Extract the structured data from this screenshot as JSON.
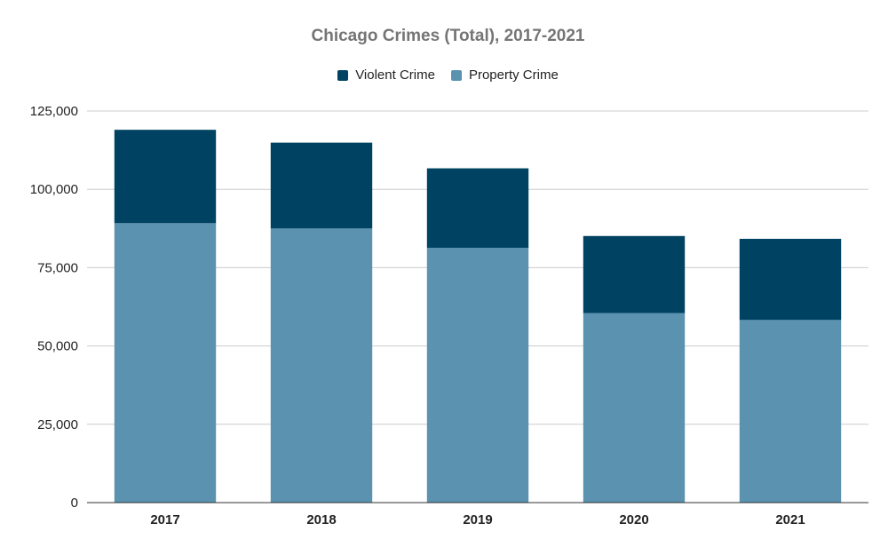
{
  "chart_data": {
    "type": "bar",
    "stacked": true,
    "title": "Chicago Crimes (Total), 2017-2021",
    "xlabel": "",
    "ylabel": "",
    "categories": [
      "2017",
      "2018",
      "2019",
      "2020",
      "2021"
    ],
    "series": [
      {
        "name": "Property Crime",
        "color": "#5a92b0",
        "values": [
          89200,
          87500,
          81300,
          60500,
          58300
        ]
      },
      {
        "name": "Violent Crime",
        "color": "#004261",
        "values": [
          29800,
          27400,
          25400,
          24600,
          25900
        ]
      }
    ],
    "legend_order": [
      "Violent Crime",
      "Property Crime"
    ],
    "ylim": [
      0,
      125000
    ],
    "yticks": [
      0,
      25000,
      50000,
      75000,
      100000,
      125000
    ],
    "ytick_labels": [
      "0",
      "25,000",
      "50,000",
      "75,000",
      "100,000",
      "125,000"
    ],
    "grid": true,
    "legend_position": "top-center"
  }
}
